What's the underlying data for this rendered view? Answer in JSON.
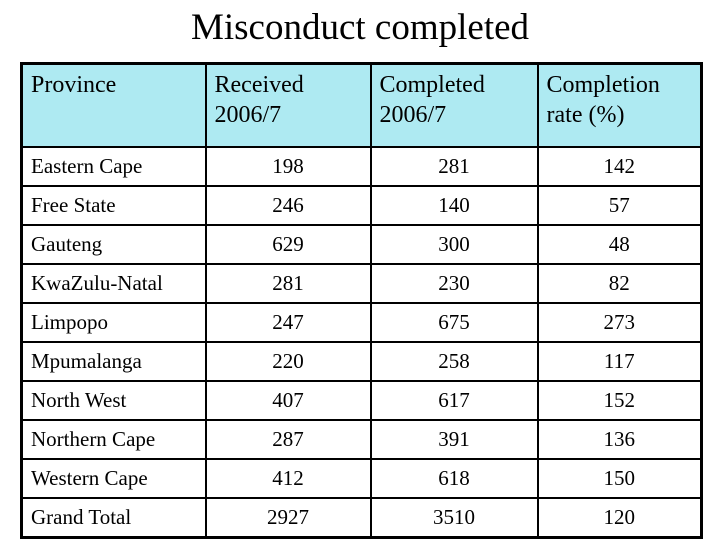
{
  "slide": {
    "title": "Misconduct completed"
  },
  "colors": {
    "header_bg": "#aeeaf2",
    "border": "#000000",
    "background": "#ffffff",
    "text": "#000000"
  },
  "table": {
    "headers": [
      "Province",
      "Received\n2006/7",
      "Completed\n2006/7",
      "Completion\nrate (%)"
    ],
    "rows": [
      {
        "province": "Eastern Cape",
        "received": "198",
        "completed": "281",
        "rate": "142"
      },
      {
        "province": "Free State",
        "received": "246",
        "completed": "140",
        "rate": "57"
      },
      {
        "province": "Gauteng",
        "received": "629",
        "completed": "300",
        "rate": "48"
      },
      {
        "province": "KwaZulu-Natal",
        "received": "281",
        "completed": "230",
        "rate": "82"
      },
      {
        "province": "Limpopo",
        "received": "247",
        "completed": "675",
        "rate": "273"
      },
      {
        "province": "Mpumalanga",
        "received": "220",
        "completed": "258",
        "rate": "117"
      },
      {
        "province": "North West",
        "received": "407",
        "completed": "617",
        "rate": "152"
      },
      {
        "province": "Northern Cape",
        "received": "287",
        "completed": "391",
        "rate": "136"
      },
      {
        "province": "Western Cape",
        "received": "412",
        "completed": "618",
        "rate": "150"
      },
      {
        "province": "Grand Total",
        "received": "2927",
        "completed": "3510",
        "rate": "120"
      }
    ]
  }
}
